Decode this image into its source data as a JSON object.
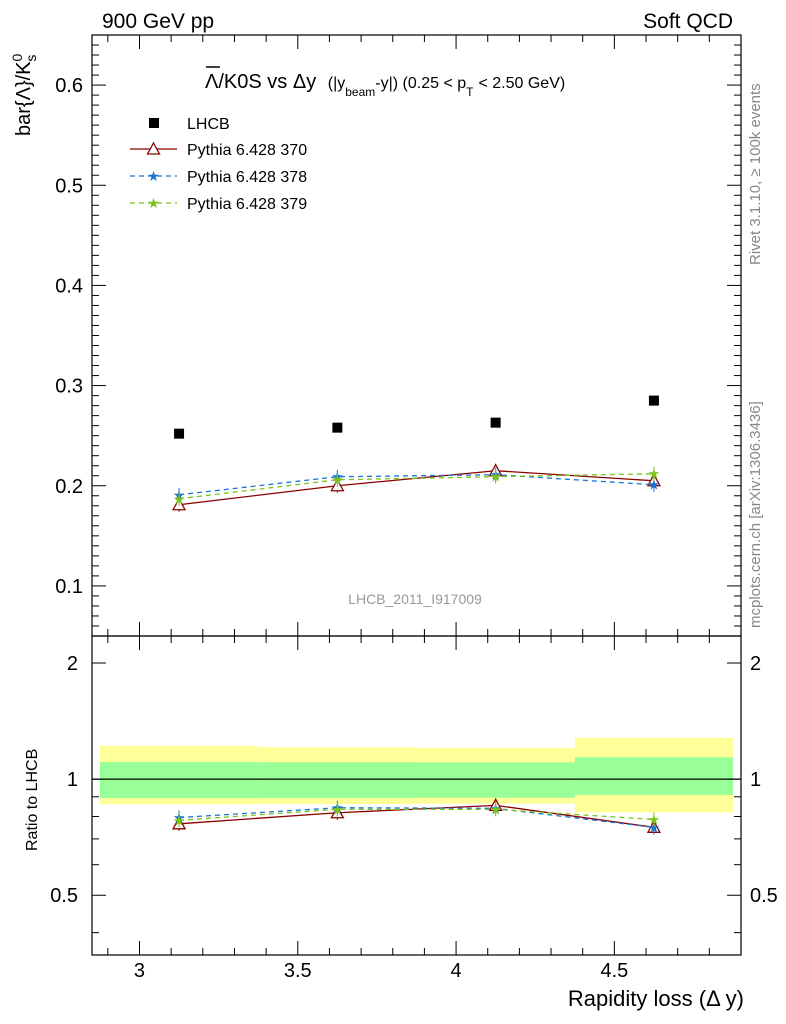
{
  "header": {
    "left": "900 GeV pp",
    "right": "Soft QCD"
  },
  "side_labels": {
    "rivet": "Rivet 3.1.10, ≥ 100k events",
    "mcplots": "mcplots.cern.ch [arXiv:1306.3436]"
  },
  "chart_data": {
    "type": "scatter",
    "title": {
      "main": "Λ/K0S vs Δy",
      "sub_open": "(|y",
      "sub_beam": "beam",
      "sub_mid": "-y|) (0.25 < p",
      "sub_T": "T",
      "sub_end": "< 2.50 GeV)"
    },
    "ylabel_main": {
      "text": "bar{Λ}/K",
      "sup": "0",
      "sub": "s"
    },
    "ylabel_ratio": "Ratio to LHCB",
    "xlabel": "Rapidity loss (Δ y)",
    "watermark": "LHCB_2011_I917009",
    "xlim": [
      2.85,
      4.9
    ],
    "ylim": [
      0.05,
      0.65
    ],
    "ratio_ylim": [
      0.35,
      2.35
    ],
    "x_ticks": [
      "3",
      "3.5",
      "4",
      "4.5"
    ],
    "y_ticks": [
      "0.1",
      "0.2",
      "0.3",
      "0.4",
      "0.5",
      "0.6"
    ],
    "ratio_ticks": [
      "0.5",
      "1",
      "2"
    ],
    "x": [
      3.125,
      3.625,
      4.125,
      4.625
    ],
    "bin_edges": [
      2.875,
      3.375,
      3.875,
      4.375,
      4.875
    ],
    "data": {
      "name": "LHCB",
      "values": [
        0.252,
        0.258,
        0.263,
        0.285
      ],
      "band_inner": [
        [
          0.893,
          1.107
        ],
        [
          0.894,
          1.106
        ],
        [
          0.895,
          1.105
        ],
        [
          0.91,
          1.14
        ]
      ],
      "band_outer": [
        [
          0.86,
          1.22
        ],
        [
          0.862,
          1.21
        ],
        [
          0.864,
          1.205
        ],
        [
          0.82,
          1.28
        ]
      ]
    },
    "series": [
      {
        "name": "Pythia 6.428 370",
        "color": "#8b0000",
        "marker": "triangle",
        "dash": "",
        "values": [
          0.181,
          0.2,
          0.215,
          0.205
        ],
        "ratio": [
          0.766,
          0.818,
          0.855,
          0.75
        ]
      },
      {
        "name": "Pythia 6.428 378",
        "color": "#1a75d1",
        "marker": "star",
        "dash": "5,4",
        "values": [
          0.191,
          0.209,
          0.211,
          0.201
        ],
        "ratio": [
          0.795,
          0.843,
          0.84,
          0.75
        ]
      },
      {
        "name": "Pythia 6.428 379",
        "color": "#7ac41a",
        "marker": "star",
        "dash": "5,4",
        "values": [
          0.187,
          0.206,
          0.209,
          0.212
        ],
        "ratio": [
          0.782,
          0.835,
          0.835,
          0.786
        ]
      }
    ]
  }
}
